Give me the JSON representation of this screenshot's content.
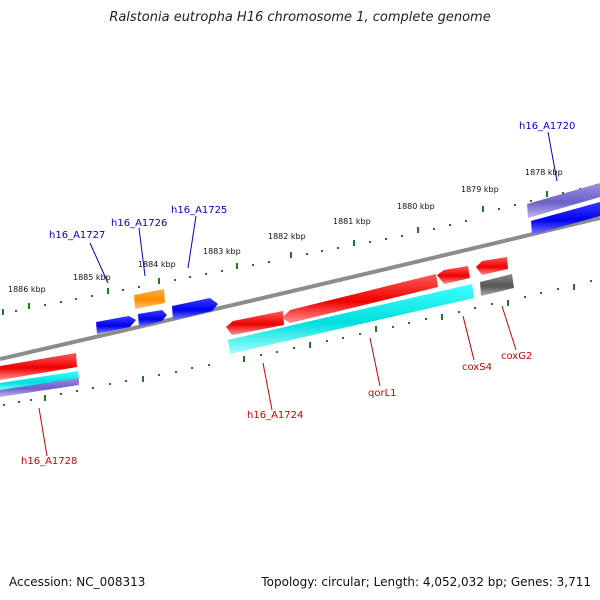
{
  "title": "Ralstonia eutropha H16 chromosome 1, complete genome",
  "footer": {
    "accession": "Accession: NC_008313",
    "summary": "Topology: circular; Length: 4,052,032 bp; Genes: 3,711"
  },
  "colors": {
    "backbone": "#808080",
    "tick": "#1a7f1a",
    "forward_label": "#0000cc",
    "reverse_label": "#cc0000",
    "red_gene": "#ff0000",
    "blue_gene": "#0000ff",
    "cyan_gene": "#00e5e5",
    "orange_gene": "#ff8c00",
    "purple_gene": "#7b6fcf",
    "gray_gene": "#666666"
  },
  "scale_labels": [
    "1886 kbp",
    "1885 kbp",
    "1884 kbp",
    "1883 kbp",
    "1882 kbp",
    "1881 kbp",
    "1880 kbp",
    "1879 kbp",
    "1878 kbp"
  ],
  "gene_labels": {
    "forward": [
      "h16_A1727",
      "h16_A1726",
      "h16_A1725",
      "h16_A1720"
    ],
    "reverse": [
      "h16_A1728",
      "h16_A1724",
      "qorL1",
      "coxS4",
      "coxG2"
    ]
  }
}
